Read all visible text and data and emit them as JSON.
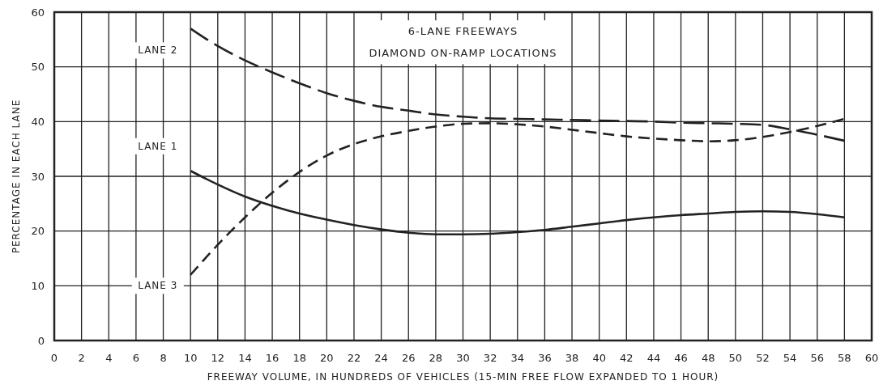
{
  "chart_data": {
    "type": "line",
    "title": "6-LANE FREEWAYS",
    "subtitle": "DIAMOND ON-RAMP LOCATIONS",
    "xlabel": "FREEWAY VOLUME, IN HUNDREDS OF VEHICLES (15-MIN FREE FLOW EXPANDED TO 1 HOUR)",
    "ylabel": "PERCENTAGE IN EACH LANE",
    "xlim": [
      0,
      60
    ],
    "xticks": [
      0,
      2,
      4,
      6,
      8,
      10,
      12,
      14,
      16,
      18,
      20,
      22,
      24,
      26,
      28,
      30,
      32,
      34,
      36,
      38,
      40,
      42,
      44,
      46,
      48,
      50,
      52,
      54,
      56,
      58,
      60
    ],
    "ylim": [
      0,
      60
    ],
    "yticks": [
      0,
      10,
      20,
      30,
      40,
      50,
      60
    ],
    "grid": true,
    "marker": "none",
    "series": [
      {
        "name": "LANE 1",
        "color": "#222222",
        "line_style": "solid",
        "x": [
          10,
          12,
          14,
          16,
          18,
          20,
          22,
          24,
          26,
          28,
          30,
          32,
          34,
          36,
          38,
          40,
          42,
          44,
          46,
          48,
          50,
          52,
          54,
          56,
          58
        ],
        "values": [
          31,
          28.5,
          26.3,
          24.6,
          23.2,
          22.1,
          21.1,
          20.3,
          19.7,
          19.4,
          19.4,
          19.5,
          19.8,
          20.2,
          20.8,
          21.4,
          22,
          22.5,
          22.9,
          23.2,
          23.5,
          23.6,
          23.5,
          23.1,
          22.5
        ]
      },
      {
        "name": "LANE 2",
        "color": "#222222",
        "line_style": "dashed",
        "x": [
          10,
          12,
          14,
          16,
          18,
          20,
          22,
          24,
          26,
          28,
          30,
          32,
          34,
          36,
          38,
          40,
          42,
          44,
          46,
          48,
          50,
          52,
          54,
          56,
          58
        ],
        "values": [
          57,
          53.8,
          51.2,
          49,
          47,
          45.2,
          43.8,
          42.7,
          42,
          41.3,
          40.9,
          40.6,
          40.5,
          40.4,
          40.3,
          40.2,
          40.1,
          40,
          39.8,
          39.7,
          39.6,
          39.4,
          38.6,
          37.6,
          36.5
        ]
      },
      {
        "name": "LANE 3",
        "color": "#222222",
        "line_style": "dashed",
        "x": [
          10,
          12,
          14,
          16,
          18,
          20,
          22,
          24,
          26,
          28,
          30,
          32,
          34,
          36,
          38,
          40,
          42,
          44,
          46,
          48,
          50,
          52,
          54,
          56,
          58
        ],
        "values": [
          12,
          17.5,
          22.5,
          27,
          30.8,
          33.8,
          35.9,
          37.3,
          38.3,
          39.1,
          39.6,
          39.7,
          39.5,
          39.1,
          38.5,
          37.9,
          37.3,
          36.9,
          36.6,
          36.4,
          36.6,
          37.2,
          38.1,
          39.2,
          40.5
        ]
      }
    ]
  }
}
